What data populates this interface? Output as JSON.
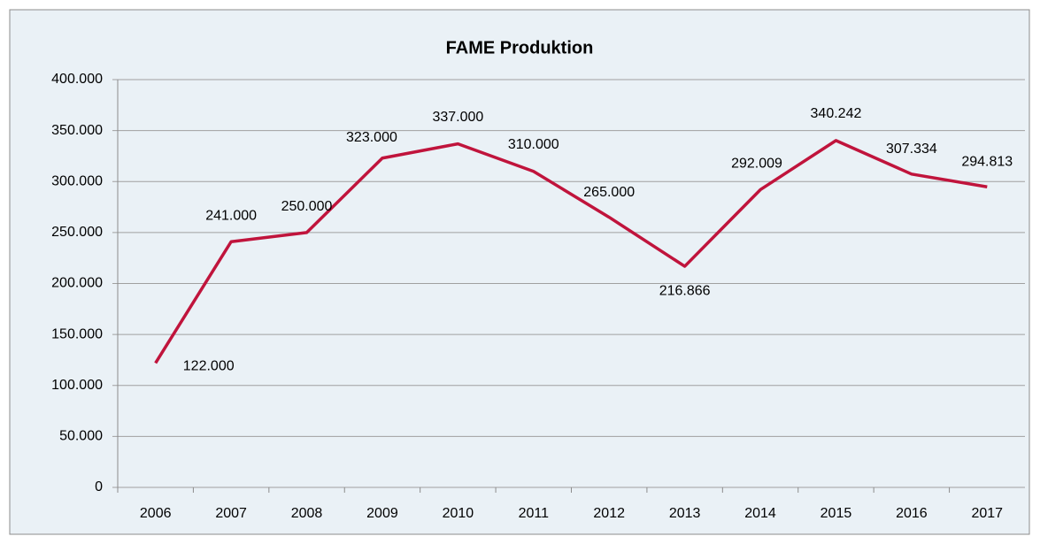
{
  "chart_data": {
    "type": "line",
    "title": "FAME Produktion",
    "categories": [
      "2006",
      "2007",
      "2008",
      "2009",
      "2010",
      "2011",
      "2012",
      "2013",
      "2014",
      "2015",
      "2016",
      "2017"
    ],
    "series": [
      {
        "name": "FAME Produktion",
        "color": "#c0143c",
        "values": [
          122000,
          241000,
          250000,
          323000,
          337000,
          310000,
          265000,
          216866,
          292009,
          340242,
          307334,
          294813
        ],
        "value_labels": [
          "122.000",
          "241.000",
          "250.000",
          "323.000",
          "337.000",
          "310.000",
          "265.000",
          "216.866",
          "292.009",
          "340.242",
          "307.334",
          "294.813"
        ]
      }
    ],
    "ylim": [
      0,
      400000
    ],
    "yticks": [
      0,
      {
        "value": 50000,
        "label": "50.000"
      },
      {
        "value": 100000,
        "label": "100.000"
      },
      {
        "value": 150000,
        "label": "150.000"
      },
      {
        "value": 200000,
        "label": "200.000"
      },
      {
        "value": 250000,
        "label": "250.000"
      },
      {
        "value": 300000,
        "label": "300.000"
      },
      {
        "value": 350000,
        "label": "350.000"
      },
      {
        "value": 400000,
        "label": "400.000"
      }
    ],
    "grid": true
  }
}
